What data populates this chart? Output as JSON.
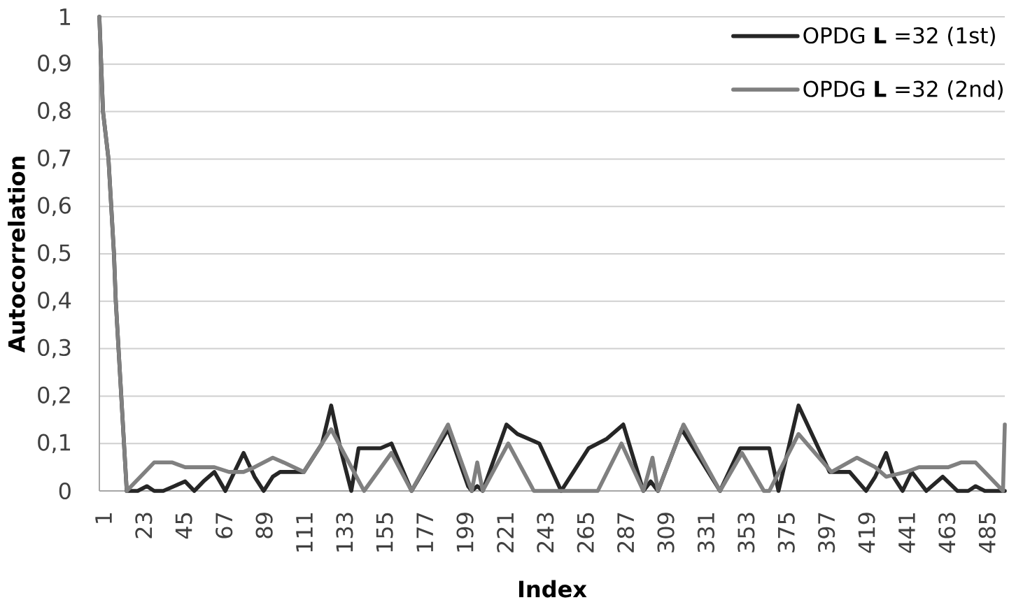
{
  "chart_data": {
    "type": "line",
    "xlabel": "Index",
    "ylabel": "Autocorrelation",
    "xlim": [
      1,
      497
    ],
    "xticks": [
      1,
      23,
      45,
      67,
      89,
      111,
      133,
      155,
      177,
      199,
      221,
      243,
      265,
      287,
      309,
      331,
      353,
      375,
      397,
      419,
      441,
      463,
      485
    ],
    "ylim": [
      0,
      1
    ],
    "yticks": [
      0,
      {
        "value": 0.1,
        "label": "0,1"
      },
      {
        "value": 0.2,
        "label": "0,2"
      },
      {
        "value": 0.3,
        "label": "0,3"
      },
      {
        "value": 0.4,
        "label": "0,4"
      },
      {
        "value": 0.5,
        "label": "0,5"
      },
      {
        "value": 0.6,
        "label": "0,6"
      },
      {
        "value": 0.7,
        "label": "0,7"
      },
      {
        "value": 0.8,
        "label": "0,8"
      },
      {
        "value": 0.9,
        "label": "0,9"
      },
      1
    ],
    "grid": "y",
    "legend": "top right",
    "series": [
      {
        "name": "OPDG **L** =32 (1st)",
        "color": "#262626",
        "x": [
          1,
          3,
          6,
          9,
          10,
          16,
          22,
          27,
          31,
          36,
          42,
          48,
          53,
          58,
          64,
          70,
          80,
          86,
          91,
          96,
          100,
          110,
          113,
          123,
          128,
          133,
          139,
          143,
          155,
          161,
          172,
          192,
          203,
          205,
          208,
          211,
          224,
          230,
          242,
          254,
          269,
          279,
          288,
          299,
          303,
          307,
          320,
          341,
          352,
          368,
          373,
          384,
          401,
          412,
          421,
          426,
          432,
          436,
          441,
          446,
          454,
          463,
          471,
          477,
          481,
          486,
          497
        ],
        "values": [
          1.0,
          0.8,
          0.7,
          0.5,
          0.4,
          0.0,
          0.0,
          0.01,
          0.0,
          0.0,
          0.01,
          0.02,
          0.0,
          0.02,
          0.04,
          0.0,
          0.08,
          0.03,
          0.0,
          0.03,
          0.04,
          0.04,
          0.04,
          0.1,
          0.18,
          0.09,
          0.0,
          0.09,
          0.09,
          0.1,
          0.0,
          0.13,
          0.01,
          0.0,
          0.01,
          0.0,
          0.14,
          0.12,
          0.1,
          0.0,
          0.09,
          0.11,
          0.14,
          0.0,
          0.02,
          0.0,
          0.13,
          0.0,
          0.09,
          0.09,
          0.0,
          0.18,
          0.04,
          0.04,
          0.0,
          0.03,
          0.08,
          0.03,
          0.0,
          0.04,
          0.0,
          0.03,
          0.0,
          0.0,
          0.01,
          0.0,
          0.0
        ]
      },
      {
        "name": "OPDG **L** =32 (2nd)",
        "color": "#808080",
        "x": [
          1,
          3,
          6,
          9,
          10,
          16,
          31,
          41,
          48,
          64,
          72,
          80,
          86,
          96,
          102,
          113,
          128,
          146,
          161,
          172,
          192,
          205,
          208,
          211,
          225,
          239,
          274,
          287,
          299,
          304,
          307,
          321,
          341,
          353,
          365,
          368,
          384,
          402,
          416,
          426,
          432,
          443,
          450,
          466,
          473,
          481,
          496,
          497
        ],
        "values": [
          1.0,
          0.8,
          0.7,
          0.5,
          0.4,
          0.0,
          0.06,
          0.06,
          0.05,
          0.05,
          0.04,
          0.04,
          0.05,
          0.07,
          0.06,
          0.04,
          0.13,
          0.0,
          0.08,
          0.0,
          0.14,
          0.0,
          0.06,
          0.0,
          0.1,
          0.0,
          0.0,
          0.1,
          0.0,
          0.07,
          0.0,
          0.14,
          0.0,
          0.08,
          0.0,
          0.0,
          0.12,
          0.04,
          0.07,
          0.05,
          0.03,
          0.04,
          0.05,
          0.05,
          0.06,
          0.06,
          0.0,
          0.14
        ]
      }
    ]
  }
}
